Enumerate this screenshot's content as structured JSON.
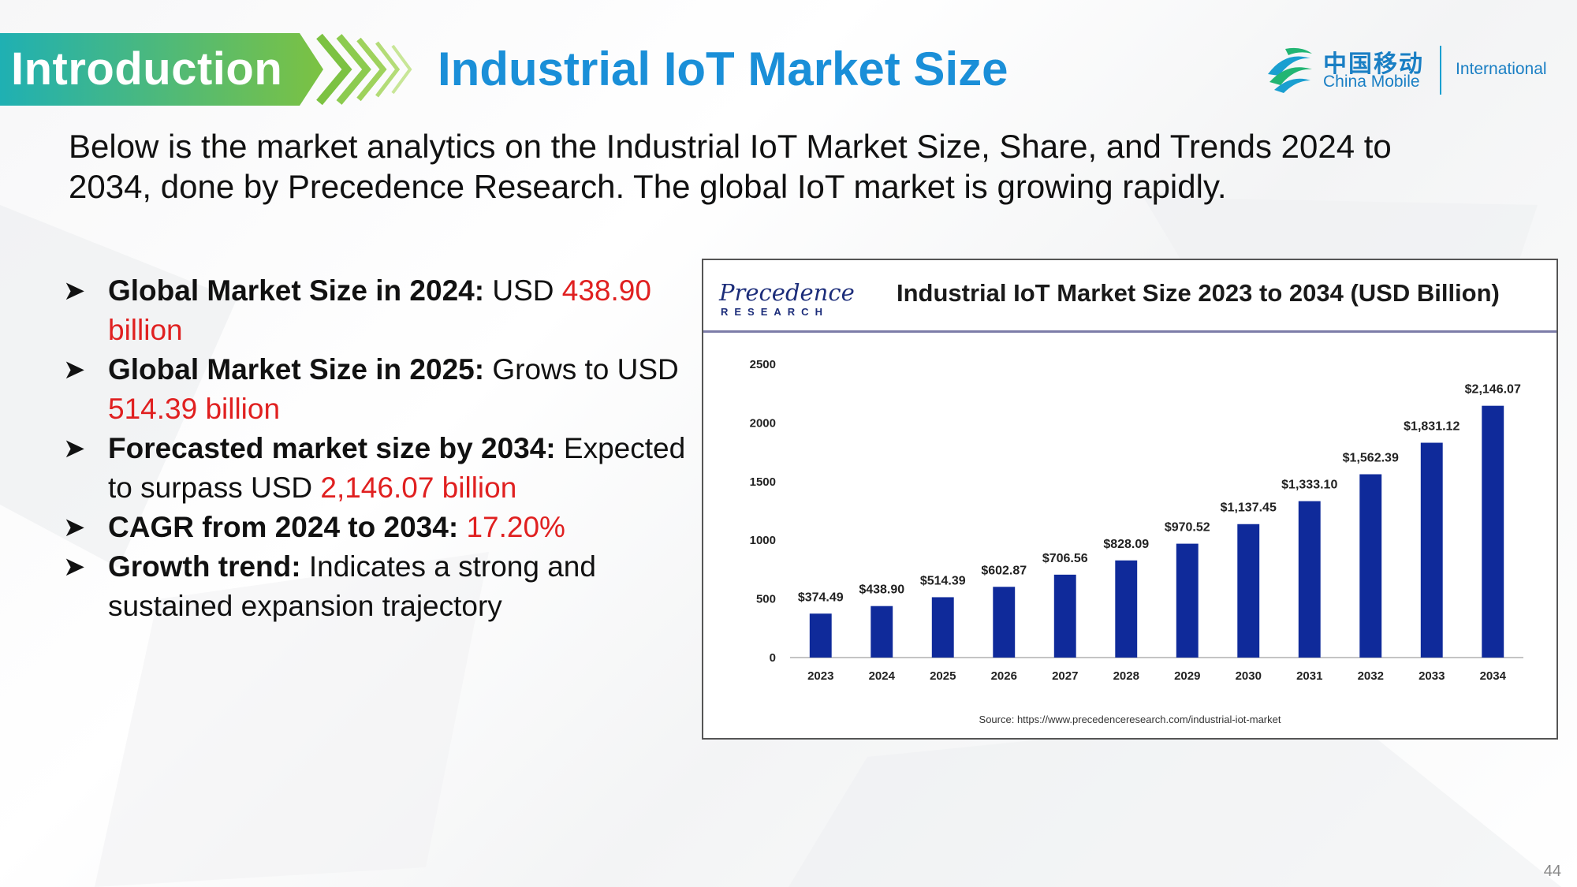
{
  "header": {
    "section_label": "Introduction",
    "title": "Industrial IoT Market Size",
    "logo": {
      "cn_text": "中国移动",
      "en_text": "China Mobile",
      "suffix": "International"
    }
  },
  "intro_paragraph": "Below is the market analytics on the Industrial IoT Market Size, Share, and Trends 2024 to 2034, done by Precedence Research. The global IoT market is growing rapidly.",
  "bullets": [
    {
      "bold": "Global Market Size in 2024:",
      "text": " USD ",
      "highlight": "438.90 billion",
      "tail": ""
    },
    {
      "bold": "Global Market Size in 2025:",
      "text": " Grows to USD ",
      "highlight": "514.39 billion",
      "tail": ""
    },
    {
      "bold": "Forecasted market size by 2034:",
      "text": " Expected to surpass USD ",
      "highlight": "2,146.07 billion",
      "tail": ""
    },
    {
      "bold": "CAGR from 2024 to 2034:",
      "text": " ",
      "highlight": "17.20%",
      "tail": ""
    },
    {
      "bold": "Growth trend:",
      "text": " Indicates a strong and sustained expansion trajectory",
      "highlight": "",
      "tail": ""
    }
  ],
  "chart_panel": {
    "brand_top": "Precedence",
    "brand_bottom": "RESEARCH",
    "source": "Source: https://www.precedenceresearch.com/industrial-iot-market"
  },
  "chart_data": {
    "type": "bar",
    "title": "Industrial IoT Market Size 2023 to 2034 (USD Billion)",
    "categories": [
      "2023",
      "2024",
      "2025",
      "2026",
      "2027",
      "2028",
      "2029",
      "2030",
      "2031",
      "2032",
      "2033",
      "2034"
    ],
    "values": [
      374.49,
      438.9,
      514.39,
      602.87,
      706.56,
      828.09,
      970.52,
      1137.45,
      1333.1,
      1562.39,
      1831.12,
      2146.07
    ],
    "data_labels": [
      "$374.49",
      "$438.90",
      "$514.39",
      "$602.87",
      "$706.56",
      "$828.09",
      "$970.52",
      "$1,137.45",
      "$1,333.10",
      "$1,562.39",
      "$1,831.12",
      "$2,146.07"
    ],
    "y_ticks": [
      "0",
      "500",
      "1000",
      "1500",
      "2000",
      "2500"
    ],
    "ylim": [
      0,
      2500
    ],
    "xlabel": "",
    "ylabel": "",
    "grid": false,
    "bar_color": "#0f2a9a"
  },
  "colors": {
    "accent_blue": "#1a8fd8",
    "highlight_red": "#e02020",
    "banner_teal": "#1fb0b3",
    "banner_green": "#7cc242"
  },
  "page_number": "44"
}
